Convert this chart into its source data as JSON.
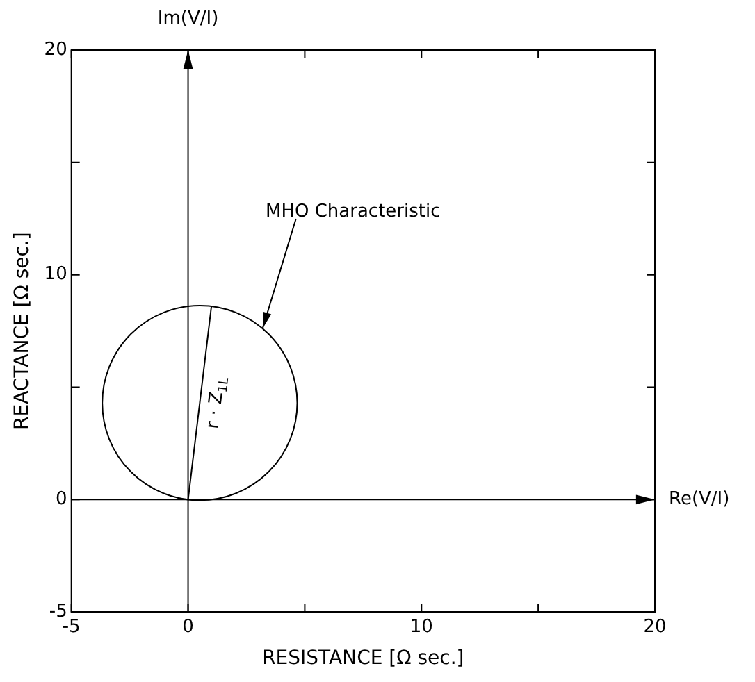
{
  "chart_data": {
    "type": "line",
    "xlabel": "RESISTANCE [Ω sec.]",
    "ylabel": "REACTANCE [Ω sec.]",
    "xlim": [
      -5,
      20
    ],
    "ylim": [
      -5,
      20
    ],
    "xticks": [
      -5,
      0,
      {
        "value": 5,
        "label": null
      },
      10,
      {
        "value": 15,
        "label": null
      },
      20
    ],
    "yticks": [
      -5,
      0,
      {
        "value": 5,
        "label": null
      },
      10,
      {
        "value": 15,
        "label": null
      },
      20
    ],
    "grid": false,
    "legend": false,
    "marker": "none",
    "line_style": "solid",
    "series": [
      {
        "color": "#000000",
        "x": [
          0,
          1.0
        ],
        "values": [
          0,
          8.6
        ]
      }
    ],
    "ref_lines": [
      {
        "axis": "x",
        "value": 0,
        "label": "Im(V/I)",
        "color": "#000000"
      },
      {
        "axis": "y",
        "value": 0,
        "label": "Re(V/I)",
        "color": "#000000"
      }
    ],
    "annotations": [
      "MHO Characteristic",
      {
        "text": "r · Z$_{1L}$",
        "x": 0.5,
        "y": 4.3
      }
    ]
  }
}
